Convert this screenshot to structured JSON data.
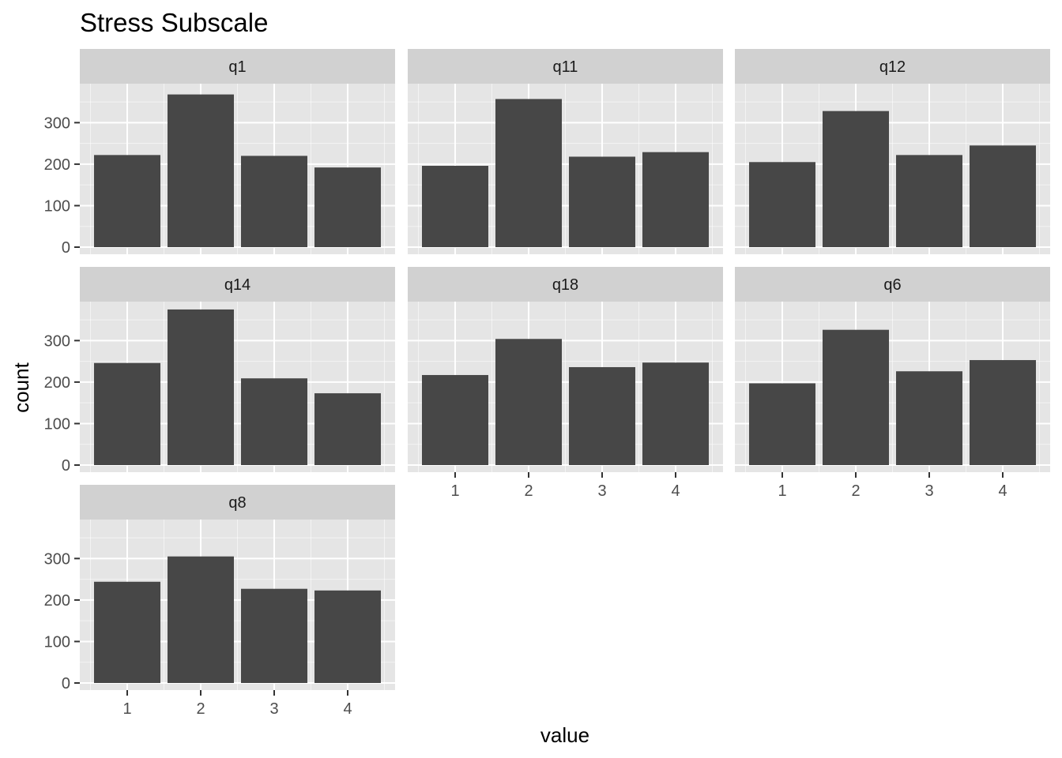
{
  "chart_data": {
    "type": "bar",
    "title": "Stress Subscale",
    "xlabel": "value",
    "ylabel": "count",
    "categories": [
      "1",
      "2",
      "3",
      "4"
    ],
    "y_ticks": [
      "0",
      "100",
      "200",
      "300"
    ],
    "ylim": [
      0,
      390
    ],
    "grid": true,
    "facets": [
      {
        "name": "q1",
        "values": [
          222,
          368,
          220,
          192
        ]
      },
      {
        "name": "q11",
        "values": [
          196,
          357,
          218,
          229
        ]
      },
      {
        "name": "q12",
        "values": [
          205,
          328,
          222,
          245
        ]
      },
      {
        "name": "q14",
        "values": [
          246,
          375,
          209,
          173
        ]
      },
      {
        "name": "q18",
        "values": [
          217,
          304,
          236,
          247
        ]
      },
      {
        "name": "q6",
        "values": [
          197,
          326,
          226,
          253
        ]
      },
      {
        "name": "q8",
        "values": [
          244,
          305,
          227,
          223
        ]
      }
    ],
    "colors": {
      "bar": "#474747",
      "panel_bg": "#e5e5e5",
      "strip_bg": "#d1d1d1",
      "grid": "#ffffff"
    }
  }
}
